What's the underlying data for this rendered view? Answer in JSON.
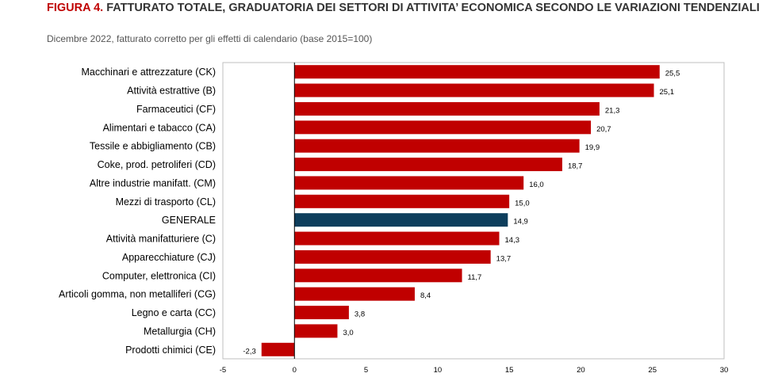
{
  "title": {
    "figure_label": "FIGURA 4.",
    "text": "FATTURATO TOTALE, GRADUATORIA DEI SETTORI DI ATTIVITA’ ECONOMICA SECONDO LE VARIAZIONI TENDENZIALI"
  },
  "subtitle": "Dicembre 2022, fatturato corretto per gli effetti di calendario (base 2015=100)",
  "colors": {
    "bar": "#c00000",
    "highlight": "#0e3e5c",
    "figure_label": "#c00000"
  },
  "chart_data": {
    "type": "bar",
    "orientation": "horizontal",
    "categories": [
      "Macchinari e attrezzature (CK)",
      "Attività estrattive (B)",
      "Farmaceutici (CF)",
      "Alimentari e tabacco (CA)",
      "Tessile e abbigliamento (CB)",
      "Coke, prod. petroliferi (CD)",
      "Altre industrie manifatt. (CM)",
      "Mezzi di trasporto (CL)",
      "GENERALE",
      "Attività manifatturiere (C)",
      "Apparecchiature (CJ)",
      "Computer, elettronica (CI)",
      "Articoli gomma, non metalliferi (CG)",
      "Legno e carta (CC)",
      "Metallurgia (CH)",
      "Prodotti chimici (CE)"
    ],
    "values": [
      25.5,
      25.1,
      21.3,
      20.7,
      19.9,
      18.7,
      16.0,
      15.0,
      14.9,
      14.3,
      13.7,
      11.7,
      8.4,
      3.8,
      3.0,
      -2.3
    ],
    "value_labels": [
      "25,5",
      "25,1",
      "21,3",
      "20,7",
      "19,9",
      "18,7",
      "16,0",
      "15,0",
      "14,9",
      "14,3",
      "13,7",
      "11,7",
      "8,4",
      "3,8",
      "3,0",
      "-2,3"
    ],
    "highlight_category": "GENERALE",
    "xlim": [
      -5,
      30
    ],
    "xticks": [
      -5,
      0,
      5,
      10,
      15,
      20,
      25,
      30
    ],
    "grid": false,
    "legend": "none"
  }
}
